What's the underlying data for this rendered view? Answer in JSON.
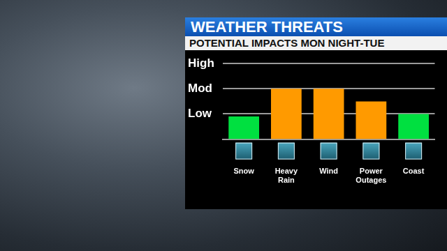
{
  "chart_data": {
    "type": "bar",
    "title": "WEATHER THREATS",
    "subtitle": "POTENTIAL IMPACTS MON NIGHT-TUE",
    "categories": [
      "Snow",
      "Heavy Rain",
      "Wind",
      "Power Outages",
      "Coast"
    ],
    "values": [
      0.9,
      2,
      2,
      1.5,
      1
    ],
    "colors": [
      "#00e040",
      "#ff9a00",
      "#ff9a00",
      "#ff9a00",
      "#00e040"
    ],
    "ylim": [
      0,
      3
    ],
    "yticks": [
      {
        "value": 1,
        "label": "Low"
      },
      {
        "value": 2,
        "label": "Mod"
      },
      {
        "value": 3,
        "label": "High"
      }
    ],
    "grid": true
  }
}
